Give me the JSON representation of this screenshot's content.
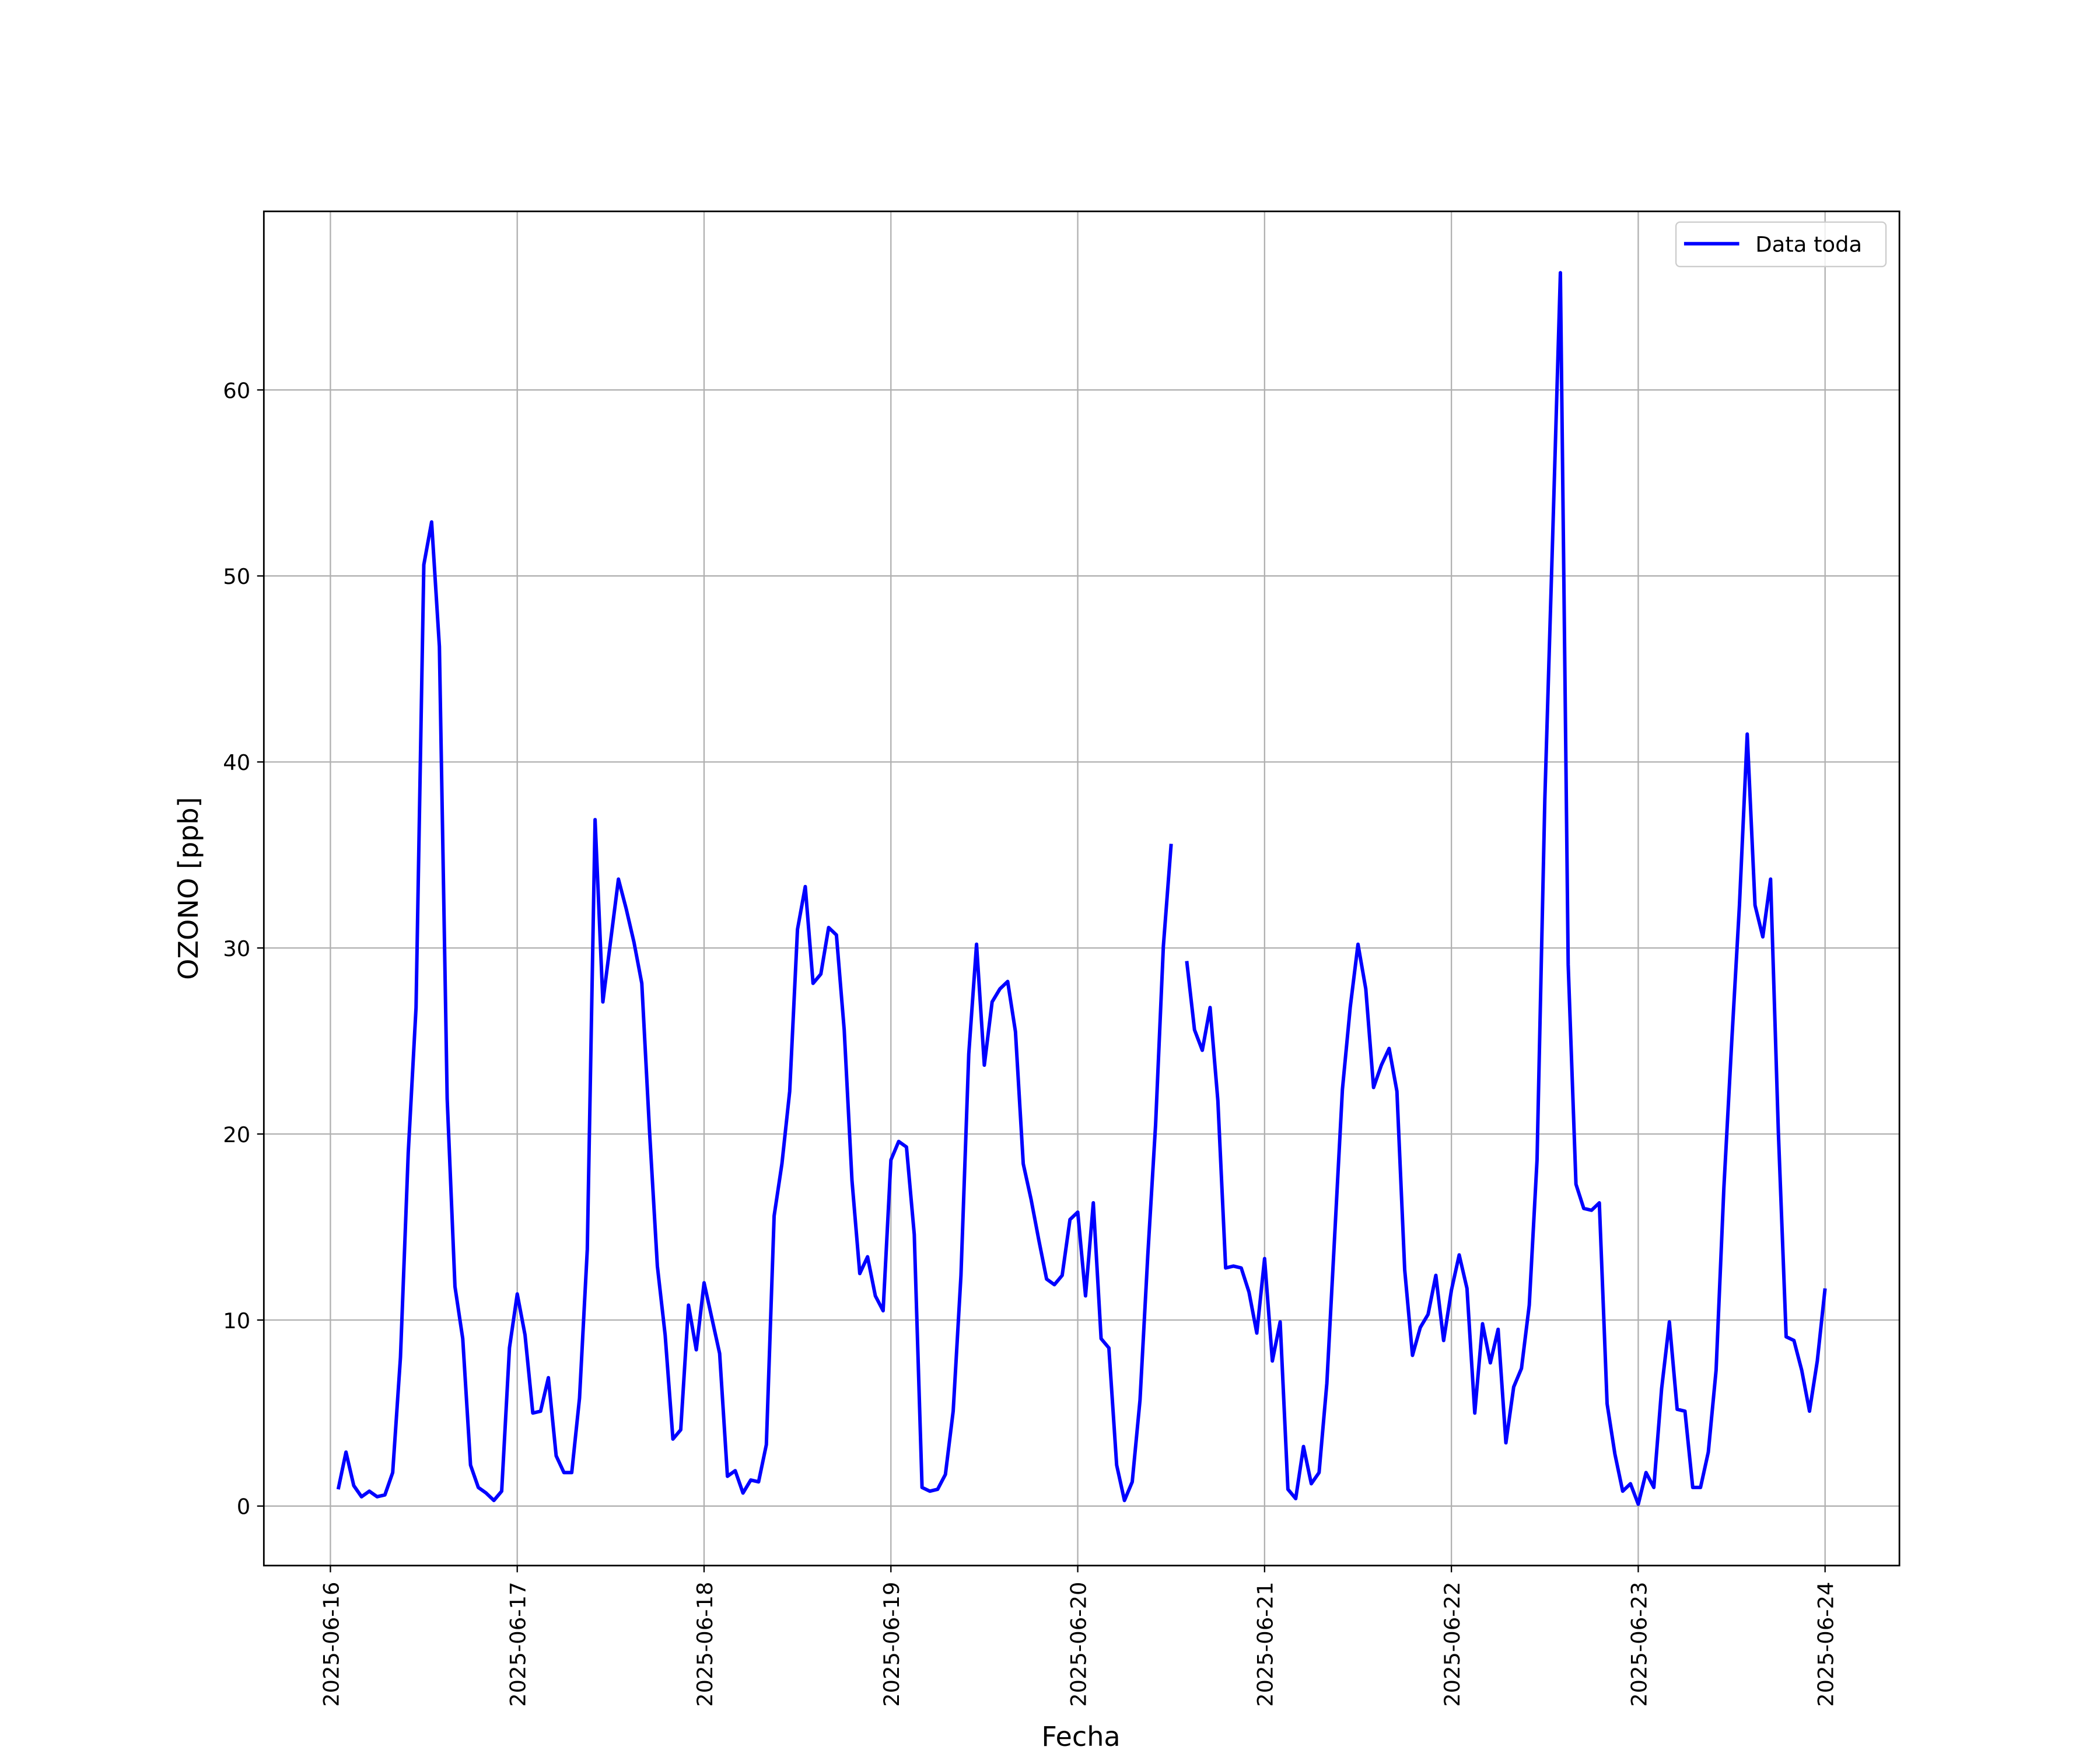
{
  "chart_data": {
    "type": "line",
    "xlabel": "Fecha",
    "ylabel": "OZONO [ppb]",
    "x": [
      "2025-06-16 01:00",
      "2025-06-16 02:00",
      "2025-06-16 03:00",
      "2025-06-16 04:00",
      "2025-06-16 05:00",
      "2025-06-16 06:00",
      "2025-06-16 07:00",
      "2025-06-16 08:00",
      "2025-06-16 09:00",
      "2025-06-16 10:00",
      "2025-06-16 11:00",
      "2025-06-16 12:00",
      "2025-06-16 13:00",
      "2025-06-16 14:00",
      "2025-06-16 15:00",
      "2025-06-16 16:00",
      "2025-06-16 17:00",
      "2025-06-16 18:00",
      "2025-06-16 19:00",
      "2025-06-16 20:00",
      "2025-06-16 21:00",
      "2025-06-16 22:00",
      "2025-06-16 23:00",
      "2025-06-17 00:00",
      "2025-06-17 01:00",
      "2025-06-17 02:00",
      "2025-06-17 03:00",
      "2025-06-17 04:00",
      "2025-06-17 05:00",
      "2025-06-17 06:00",
      "2025-06-17 07:00",
      "2025-06-17 08:00",
      "2025-06-17 09:00",
      "2025-06-17 10:00",
      "2025-06-17 11:00",
      "2025-06-17 12:00",
      "2025-06-17 13:00",
      "2025-06-17 14:00",
      "2025-06-17 15:00",
      "2025-06-17 16:00",
      "2025-06-17 17:00",
      "2025-06-17 18:00",
      "2025-06-17 19:00",
      "2025-06-17 20:00",
      "2025-06-17 21:00",
      "2025-06-17 22:00",
      "2025-06-17 23:00",
      "2025-06-18 00:00",
      "2025-06-18 01:00",
      "2025-06-18 02:00",
      "2025-06-18 03:00",
      "2025-06-18 04:00",
      "2025-06-18 05:00",
      "2025-06-18 06:00",
      "2025-06-18 07:00",
      "2025-06-18 08:00",
      "2025-06-18 09:00",
      "2025-06-18 10:00",
      "2025-06-18 11:00",
      "2025-06-18 12:00",
      "2025-06-18 13:00",
      "2025-06-18 14:00",
      "2025-06-18 15:00",
      "2025-06-18 16:00",
      "2025-06-18 17:00",
      "2025-06-18 18:00",
      "2025-06-18 19:00",
      "2025-06-18 20:00",
      "2025-06-18 21:00",
      "2025-06-18 22:00",
      "2025-06-18 23:00",
      "2025-06-19 00:00",
      "2025-06-19 01:00",
      "2025-06-19 02:00",
      "2025-06-19 03:00",
      "2025-06-19 04:00",
      "2025-06-19 05:00",
      "2025-06-19 06:00",
      "2025-06-19 07:00",
      "2025-06-19 08:00",
      "2025-06-19 09:00",
      "2025-06-19 10:00",
      "2025-06-19 11:00",
      "2025-06-19 12:00",
      "2025-06-19 13:00",
      "2025-06-19 14:00",
      "2025-06-19 15:00",
      "2025-06-19 16:00",
      "2025-06-19 17:00",
      "2025-06-19 18:00",
      "2025-06-19 19:00",
      "2025-06-19 20:00",
      "2025-06-19 21:00",
      "2025-06-19 22:00",
      "2025-06-19 23:00",
      "2025-06-20 00:00",
      "2025-06-20 01:00",
      "2025-06-20 02:00",
      "2025-06-20 03:00",
      "2025-06-20 04:00",
      "2025-06-20 05:00",
      "2025-06-20 06:00",
      "2025-06-20 07:00",
      "2025-06-20 08:00",
      "2025-06-20 09:00",
      "2025-06-20 10:00",
      "2025-06-20 11:00",
      "2025-06-20 12:00",
      "2025-06-20 13:00",
      "2025-06-20 14:00",
      "2025-06-20 15:00",
      "2025-06-20 16:00",
      "2025-06-20 17:00",
      "2025-06-20 18:00",
      "2025-06-20 19:00",
      "2025-06-20 20:00",
      "2025-06-20 21:00",
      "2025-06-20 22:00",
      "2025-06-20 23:00",
      "2025-06-21 00:00",
      "2025-06-21 01:00",
      "2025-06-21 02:00",
      "2025-06-21 03:00",
      "2025-06-21 04:00",
      "2025-06-21 05:00",
      "2025-06-21 06:00",
      "2025-06-21 07:00",
      "2025-06-21 08:00",
      "2025-06-21 09:00",
      "2025-06-21 10:00",
      "2025-06-21 11:00",
      "2025-06-21 12:00",
      "2025-06-21 13:00",
      "2025-06-21 14:00",
      "2025-06-21 15:00",
      "2025-06-21 16:00",
      "2025-06-21 17:00",
      "2025-06-21 18:00",
      "2025-06-21 19:00",
      "2025-06-21 20:00",
      "2025-06-21 21:00",
      "2025-06-21 22:00",
      "2025-06-21 23:00",
      "2025-06-22 00:00",
      "2025-06-22 01:00",
      "2025-06-22 02:00",
      "2025-06-22 03:00",
      "2025-06-22 04:00",
      "2025-06-22 05:00",
      "2025-06-22 06:00",
      "2025-06-22 07:00",
      "2025-06-22 08:00",
      "2025-06-22 09:00",
      "2025-06-22 10:00",
      "2025-06-22 11:00",
      "2025-06-22 12:00",
      "2025-06-22 13:00",
      "2025-06-22 14:00",
      "2025-06-22 15:00",
      "2025-06-22 16:00",
      "2025-06-22 17:00",
      "2025-06-22 18:00",
      "2025-06-22 19:00",
      "2025-06-22 20:00",
      "2025-06-22 21:00",
      "2025-06-22 22:00",
      "2025-06-22 23:00",
      "2025-06-23 00:00",
      "2025-06-23 01:00",
      "2025-06-23 02:00",
      "2025-06-23 03:00",
      "2025-06-23 04:00",
      "2025-06-23 05:00",
      "2025-06-23 06:00",
      "2025-06-23 07:00",
      "2025-06-23 08:00",
      "2025-06-23 09:00",
      "2025-06-23 10:00",
      "2025-06-23 11:00",
      "2025-06-23 12:00",
      "2025-06-23 13:00",
      "2025-06-23 14:00",
      "2025-06-23 15:00",
      "2025-06-23 16:00",
      "2025-06-23 17:00",
      "2025-06-23 18:00",
      "2025-06-23 19:00",
      "2025-06-23 20:00",
      "2025-06-23 21:00",
      "2025-06-23 22:00",
      "2025-06-23 23:00",
      "2025-06-24 00:00"
    ],
    "series": [
      {
        "name": "Data toda",
        "color": "#0000ff",
        "values": [
          0.9,
          2.9,
          1.1,
          0.5,
          0.8,
          0.5,
          0.6,
          1.8,
          8,
          19,
          26.8,
          50.6,
          52.9,
          46.2,
          21.9,
          11.8,
          9,
          2.2,
          1.0,
          0.7,
          0.3,
          0.8,
          8.5,
          11.4,
          9.2,
          5,
          5.1,
          6.9,
          2.7,
          1.8,
          1.8,
          5.8,
          13.8,
          36.9,
          27.1,
          30.4,
          33.7,
          32.1,
          30.3,
          28.1,
          20.1,
          12.9,
          9.2,
          3.6,
          4.1,
          10.8,
          8.4,
          12,
          10.1,
          8.2,
          1.6,
          1.9,
          0.7,
          1.4,
          1.3,
          3.3,
          15.6,
          18.4,
          22.3,
          31,
          33.3,
          28.1,
          28.6,
          31.1,
          30.7,
          25.6,
          17.5,
          12.5,
          13.4,
          11.3,
          10.5,
          18.6,
          19.6,
          19.3,
          14.6,
          1.0,
          0.8,
          0.9,
          1.7,
          5.1,
          12.4,
          24.3,
          30.2,
          23.7,
          27.1,
          27.8,
          28.2,
          25.5,
          18.4,
          16.5,
          14.3,
          12.2,
          11.9,
          12.4,
          15.4,
          15.8,
          11.3,
          16.3,
          9,
          8.5,
          2.2,
          0.3,
          1.3,
          5.7,
          13.5,
          20.5,
          30.1,
          35.6,
          null,
          29.3,
          25.6,
          24.5,
          26.8,
          21.8,
          12.8,
          12.9,
          12.8,
          11.5,
          9.3,
          13.3,
          7.8,
          9.9,
          0.9,
          0.4,
          3.2,
          1.2,
          1.8,
          6.6,
          14.5,
          22.4,
          26.8,
          30.2,
          27.8,
          22.5,
          23.7,
          24.6,
          22.3,
          12.7,
          8.1,
          9.6,
          10.3,
          12.4,
          8.9,
          11.6,
          13.5,
          11.7,
          5,
          9.8,
          7.7,
          9.5,
          3.4,
          6.4,
          7.4,
          10.8,
          18.6,
          38,
          52,
          66.3,
          29.1,
          17.3,
          16,
          15.9,
          16.3,
          5.5,
          2.8,
          0.8,
          1.2,
          0.1,
          1.8,
          1.0,
          6.3,
          9.9,
          5.2,
          5.1,
          1.0,
          1.0,
          2.9,
          7.3,
          17.1,
          24.9,
          32.3,
          41.5,
          32.3,
          30.6,
          33.7,
          20.1,
          9.1,
          8.9,
          7.3,
          5.1,
          7.8,
          11.7
        ]
      }
    ],
    "xlim": [
      "2025-06-15 15:27",
      "2025-06-24 09:33"
    ],
    "xticks": [
      "2025-06-16",
      "2025-06-17",
      "2025-06-18",
      "2025-06-19",
      "2025-06-20",
      "2025-06-21",
      "2025-06-22",
      "2025-06-23",
      "2025-06-24"
    ],
    "ylim": [
      -3.2,
      69.6
    ],
    "yticks": [
      0,
      10,
      20,
      30,
      40,
      50,
      60
    ],
    "grid": true,
    "legend": "upper right"
  }
}
